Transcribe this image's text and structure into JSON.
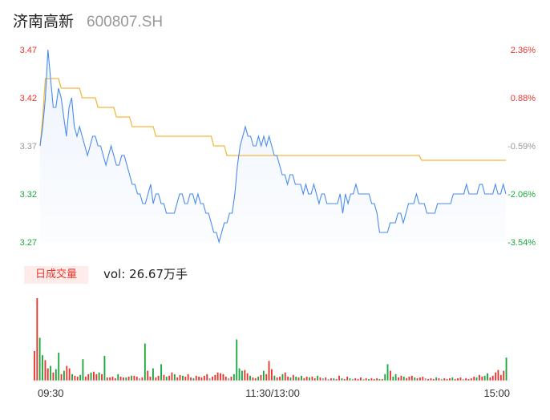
{
  "header": {
    "name": "济南高新",
    "code": "600807.SH"
  },
  "volume_panel": {
    "tab_label": "日成交量",
    "readout_label": "vol:",
    "readout_value": "26.67万手"
  },
  "chart_data": [
    {
      "type": "line",
      "price_ticks": [
        "3.47",
        "3.42",
        "3.37",
        "3.32",
        "3.27"
      ],
      "pct_ticks": [
        "2.36%",
        "0.88%",
        "-0.59%",
        "-2.06%",
        "-3.54%"
      ],
      "ylim": [
        3.27,
        3.47
      ],
      "prev_close": 3.39,
      "x_ticks": [
        "09:30",
        "11:30/13:00",
        "15:00"
      ],
      "colors": {
        "price": "#4a8bf0",
        "average": "#f5b83c",
        "up": "#e8352e",
        "down": "#1ba73c",
        "neutral": "#999999"
      },
      "series": [
        {
          "values": [
            3.37,
            3.39,
            3.42,
            3.47,
            3.44,
            3.41,
            3.41,
            3.43,
            3.42,
            3.4,
            3.38,
            3.41,
            3.42,
            3.39,
            3.38,
            3.39,
            3.38,
            3.37,
            3.36,
            3.37,
            3.38,
            3.38,
            3.37,
            3.37,
            3.36,
            3.35,
            3.36,
            3.37,
            3.36,
            3.35,
            3.35,
            3.36,
            3.36,
            3.35,
            3.34,
            3.33,
            3.33,
            3.32,
            3.32,
            3.31,
            3.31,
            3.32,
            3.33,
            3.31,
            3.32,
            3.32,
            3.31,
            3.31,
            3.3,
            3.3,
            3.3,
            3.3,
            3.31,
            3.32,
            3.32,
            3.31,
            3.31,
            3.32,
            3.32,
            3.31,
            3.32,
            3.31,
            3.31,
            3.3,
            3.3,
            3.29,
            3.28,
            3.28,
            3.27,
            3.28,
            3.29,
            3.29,
            3.3,
            3.3,
            3.32,
            3.35,
            3.37,
            3.38,
            3.39,
            3.38,
            3.38,
            3.37,
            3.37,
            3.38,
            3.37,
            3.38,
            3.37,
            3.38,
            3.37,
            3.36,
            3.36,
            3.35,
            3.34,
            3.34,
            3.33,
            3.34,
            3.34,
            3.33,
            3.33,
            3.33,
            3.32,
            3.33,
            3.32,
            3.32,
            3.33,
            3.32,
            3.31,
            3.32,
            3.32,
            3.31,
            3.31,
            3.31,
            3.31,
            3.31,
            3.32,
            3.3,
            3.32,
            3.31,
            3.32,
            3.32,
            3.33,
            3.32,
            3.32,
            3.32,
            3.32,
            3.32,
            3.31,
            3.31,
            3.3,
            3.28,
            3.28,
            3.28,
            3.28,
            3.29,
            3.29,
            3.29,
            3.3,
            3.3,
            3.29,
            3.3,
            3.31,
            3.31,
            3.31,
            3.32,
            3.31,
            3.31,
            3.31,
            3.3,
            3.3,
            3.3,
            3.3,
            3.31,
            3.31,
            3.31,
            3.31,
            3.31,
            3.31,
            3.32,
            3.32,
            3.32,
            3.32,
            3.32,
            3.33,
            3.32,
            3.32,
            3.32,
            3.32,
            3.33,
            3.33,
            3.32,
            3.32,
            3.32,
            3.32,
            3.33,
            3.32,
            3.32,
            3.33,
            3.32
          ]
        },
        {
          "values": [
            3.37,
            3.4,
            3.44,
            3.44,
            3.44,
            3.44,
            3.44,
            3.44,
            3.43,
            3.43,
            3.43,
            3.43,
            3.43,
            3.43,
            3.43,
            3.43,
            3.42,
            3.42,
            3.42,
            3.42,
            3.42,
            3.42,
            3.41,
            3.41,
            3.41,
            3.41,
            3.41,
            3.41,
            3.41,
            3.4,
            3.4,
            3.4,
            3.4,
            3.4,
            3.4,
            3.39,
            3.39,
            3.39,
            3.39,
            3.39,
            3.39,
            3.39,
            3.39,
            3.39,
            3.38,
            3.38,
            3.38,
            3.38,
            3.38,
            3.38,
            3.38,
            3.38,
            3.38,
            3.38,
            3.38,
            3.38,
            3.38,
            3.38,
            3.38,
            3.38,
            3.38,
            3.38,
            3.38,
            3.38,
            3.38,
            3.38,
            3.37,
            3.37,
            3.37,
            3.37,
            3.37,
            3.36,
            3.36,
            3.36,
            3.36,
            3.36,
            3.36,
            3.36,
            3.36,
            3.36,
            3.36,
            3.36,
            3.36,
            3.36,
            3.36,
            3.36,
            3.36,
            3.36,
            3.36,
            3.36,
            3.36,
            3.36,
            3.36,
            3.36,
            3.36,
            3.36,
            3.36,
            3.36,
            3.36,
            3.36,
            3.36,
            3.36,
            3.36,
            3.36,
            3.36,
            3.36,
            3.36,
            3.36,
            3.36,
            3.36,
            3.36,
            3.36,
            3.36,
            3.36,
            3.36,
            3.36,
            3.36,
            3.36,
            3.36,
            3.36,
            3.36,
            3.36,
            3.36,
            3.36,
            3.36,
            3.36,
            3.36,
            3.36,
            3.36,
            3.36,
            3.36,
            3.36,
            3.36,
            3.36,
            3.36,
            3.36,
            3.36,
            3.36,
            3.36,
            3.36,
            3.36,
            3.36,
            3.36,
            3.36,
            3.36,
            3.355,
            3.355,
            3.355,
            3.355,
            3.355,
            3.355,
            3.355,
            3.355,
            3.355,
            3.355,
            3.355,
            3.355,
            3.355,
            3.355,
            3.355,
            3.355,
            3.355,
            3.355,
            3.355,
            3.355,
            3.355,
            3.355,
            3.355,
            3.355,
            3.355,
            3.355,
            3.355,
            3.355,
            3.355,
            3.355,
            3.355,
            3.355,
            3.355
          ]
        }
      ]
    },
    {
      "type": "bar",
      "max_volume": 1,
      "colors": [
        "#e8352e",
        "#1ba73c",
        "#999999"
      ],
      "bars": [
        {
          "v": 0.36,
          "c": 0
        },
        {
          "v": 1.0,
          "c": 0
        },
        {
          "v": 0.52,
          "c": 1
        },
        {
          "v": 0.31,
          "c": 1
        },
        {
          "v": 0.25,
          "c": 0
        },
        {
          "v": 0.15,
          "c": 0
        },
        {
          "v": 0.18,
          "c": 1
        },
        {
          "v": 0.1,
          "c": 0
        },
        {
          "v": 0.14,
          "c": 1
        },
        {
          "v": 0.34,
          "c": 1
        },
        {
          "v": 0.08,
          "c": 0
        },
        {
          "v": 0.12,
          "c": 1
        },
        {
          "v": 0.18,
          "c": 0
        },
        {
          "v": 0.15,
          "c": 0
        },
        {
          "v": 0.08,
          "c": 1
        },
        {
          "v": 0.06,
          "c": 0
        },
        {
          "v": 0.05,
          "c": 0
        },
        {
          "v": 0.07,
          "c": 1
        },
        {
          "v": 0.26,
          "c": 1
        },
        {
          "v": 0.05,
          "c": 0
        },
        {
          "v": 0.08,
          "c": 0
        },
        {
          "v": 0.1,
          "c": 1
        },
        {
          "v": 0.11,
          "c": 0
        },
        {
          "v": 0.08,
          "c": 0
        },
        {
          "v": 0.1,
          "c": 1
        },
        {
          "v": 0.08,
          "c": 0
        },
        {
          "v": 0.3,
          "c": 1
        },
        {
          "v": 0.04,
          "c": 0
        },
        {
          "v": 0.04,
          "c": 0
        },
        {
          "v": 0.05,
          "c": 0
        },
        {
          "v": 0.03,
          "c": 0
        },
        {
          "v": 0.08,
          "c": 1
        },
        {
          "v": 0.05,
          "c": 0
        },
        {
          "v": 0.04,
          "c": 0
        },
        {
          "v": 0.04,
          "c": 1
        },
        {
          "v": 0.05,
          "c": 0
        },
        {
          "v": 0.06,
          "c": 1
        },
        {
          "v": 0.06,
          "c": 0
        },
        {
          "v": 0.05,
          "c": 0
        },
        {
          "v": 0.03,
          "c": 2
        },
        {
          "v": 0.04,
          "c": 0
        },
        {
          "v": 0.45,
          "c": 1
        },
        {
          "v": 0.12,
          "c": 0
        },
        {
          "v": 0.05,
          "c": 0
        },
        {
          "v": 0.15,
          "c": 1
        },
        {
          "v": 0.04,
          "c": 0
        },
        {
          "v": 0.06,
          "c": 0
        },
        {
          "v": 0.2,
          "c": 1
        },
        {
          "v": 0.07,
          "c": 0
        },
        {
          "v": 0.05,
          "c": 1
        },
        {
          "v": 0.06,
          "c": 0
        },
        {
          "v": 0.1,
          "c": 0
        },
        {
          "v": 0.08,
          "c": 1
        },
        {
          "v": 0.04,
          "c": 0
        },
        {
          "v": 0.07,
          "c": 0
        },
        {
          "v": 0.06,
          "c": 1
        },
        {
          "v": 0.05,
          "c": 0
        },
        {
          "v": 0.08,
          "c": 0
        },
        {
          "v": 0.04,
          "c": 0
        },
        {
          "v": 0.03,
          "c": 1
        },
        {
          "v": 0.06,
          "c": 0
        },
        {
          "v": 0.05,
          "c": 0
        },
        {
          "v": 0.04,
          "c": 0
        },
        {
          "v": 0.06,
          "c": 0
        },
        {
          "v": 0.08,
          "c": 0
        },
        {
          "v": 0.03,
          "c": 2
        },
        {
          "v": 0.05,
          "c": 0
        },
        {
          "v": 0.07,
          "c": 0
        },
        {
          "v": 0.1,
          "c": 0
        },
        {
          "v": 0.09,
          "c": 0
        },
        {
          "v": 0.08,
          "c": 0
        },
        {
          "v": 0.05,
          "c": 0
        },
        {
          "v": 0.03,
          "c": 2
        },
        {
          "v": 0.05,
          "c": 0
        },
        {
          "v": 0.08,
          "c": 1
        },
        {
          "v": 0.5,
          "c": 1
        },
        {
          "v": 0.15,
          "c": 1
        },
        {
          "v": 0.12,
          "c": 1
        },
        {
          "v": 0.13,
          "c": 0
        },
        {
          "v": 0.09,
          "c": 0
        },
        {
          "v": 0.06,
          "c": 1
        },
        {
          "v": 0.04,
          "c": 0
        },
        {
          "v": 0.03,
          "c": 0
        },
        {
          "v": 0.05,
          "c": 1
        },
        {
          "v": 0.07,
          "c": 0
        },
        {
          "v": 0.12,
          "c": 1
        },
        {
          "v": 0.08,
          "c": 0
        },
        {
          "v": 0.24,
          "c": 0
        },
        {
          "v": 0.14,
          "c": 0
        },
        {
          "v": 0.06,
          "c": 1
        },
        {
          "v": 0.04,
          "c": 0
        },
        {
          "v": 0.05,
          "c": 0
        },
        {
          "v": 0.08,
          "c": 1
        },
        {
          "v": 0.1,
          "c": 0
        },
        {
          "v": 0.05,
          "c": 0
        },
        {
          "v": 0.04,
          "c": 1
        },
        {
          "v": 0.07,
          "c": 0
        },
        {
          "v": 0.05,
          "c": 1
        },
        {
          "v": 0.04,
          "c": 0
        },
        {
          "v": 0.06,
          "c": 1
        },
        {
          "v": 0.03,
          "c": 0
        },
        {
          "v": 0.05,
          "c": 0
        },
        {
          "v": 0.04,
          "c": 1
        },
        {
          "v": 0.05,
          "c": 0
        },
        {
          "v": 0.03,
          "c": 0
        },
        {
          "v": 0.06,
          "c": 1
        },
        {
          "v": 0.04,
          "c": 0
        },
        {
          "v": 0.03,
          "c": 2
        },
        {
          "v": 0.04,
          "c": 0
        },
        {
          "v": 0.02,
          "c": 2
        },
        {
          "v": 0.03,
          "c": 0
        },
        {
          "v": 0.03,
          "c": 1
        },
        {
          "v": 0.02,
          "c": 0
        },
        {
          "v": 0.06,
          "c": 0
        },
        {
          "v": 0.03,
          "c": 1
        },
        {
          "v": 0.02,
          "c": 0
        },
        {
          "v": 0.05,
          "c": 0
        },
        {
          "v": 0.03,
          "c": 1
        },
        {
          "v": 0.02,
          "c": 2
        },
        {
          "v": 0.03,
          "c": 0
        },
        {
          "v": 0.02,
          "c": 0
        },
        {
          "v": 0.04,
          "c": 0
        },
        {
          "v": 0.02,
          "c": 2
        },
        {
          "v": 0.03,
          "c": 0
        },
        {
          "v": 0.02,
          "c": 1
        },
        {
          "v": 0.03,
          "c": 0
        },
        {
          "v": 0.02,
          "c": 0
        },
        {
          "v": 0.03,
          "c": 0
        },
        {
          "v": 0.02,
          "c": 1
        },
        {
          "v": 0.02,
          "c": 0
        },
        {
          "v": 0.08,
          "c": 1
        },
        {
          "v": 0.2,
          "c": 1
        },
        {
          "v": 0.12,
          "c": 0
        },
        {
          "v": 0.05,
          "c": 1
        },
        {
          "v": 0.08,
          "c": 1
        },
        {
          "v": 0.04,
          "c": 0
        },
        {
          "v": 0.06,
          "c": 0
        },
        {
          "v": 0.05,
          "c": 1
        },
        {
          "v": 0.03,
          "c": 0
        },
        {
          "v": 0.05,
          "c": 0
        },
        {
          "v": 0.06,
          "c": 0
        },
        {
          "v": 0.04,
          "c": 1
        },
        {
          "v": 0.03,
          "c": 0
        },
        {
          "v": 0.04,
          "c": 0
        },
        {
          "v": 0.05,
          "c": 0
        },
        {
          "v": 0.03,
          "c": 2
        },
        {
          "v": 0.02,
          "c": 0
        },
        {
          "v": 0.03,
          "c": 0
        },
        {
          "v": 0.02,
          "c": 0
        },
        {
          "v": 0.04,
          "c": 1
        },
        {
          "v": 0.03,
          "c": 0
        },
        {
          "v": 0.02,
          "c": 2
        },
        {
          "v": 0.03,
          "c": 0
        },
        {
          "v": 0.02,
          "c": 0
        },
        {
          "v": 0.03,
          "c": 0
        },
        {
          "v": 0.04,
          "c": 1
        },
        {
          "v": 0.02,
          "c": 0
        },
        {
          "v": 0.03,
          "c": 0
        },
        {
          "v": 0.04,
          "c": 0
        },
        {
          "v": 0.02,
          "c": 2
        },
        {
          "v": 0.03,
          "c": 0
        },
        {
          "v": 0.02,
          "c": 0
        },
        {
          "v": 0.03,
          "c": 0
        },
        {
          "v": 0.05,
          "c": 0
        },
        {
          "v": 0.04,
          "c": 1
        },
        {
          "v": 0.07,
          "c": 0
        },
        {
          "v": 0.05,
          "c": 0
        },
        {
          "v": 0.06,
          "c": 1
        },
        {
          "v": 0.09,
          "c": 1
        },
        {
          "v": 0.04,
          "c": 0
        },
        {
          "v": 0.06,
          "c": 0
        },
        {
          "v": 0.1,
          "c": 0
        },
        {
          "v": 0.13,
          "c": 0
        },
        {
          "v": 0.07,
          "c": 0
        },
        {
          "v": 0.12,
          "c": 0
        },
        {
          "v": 0.28,
          "c": 1
        }
      ]
    }
  ]
}
